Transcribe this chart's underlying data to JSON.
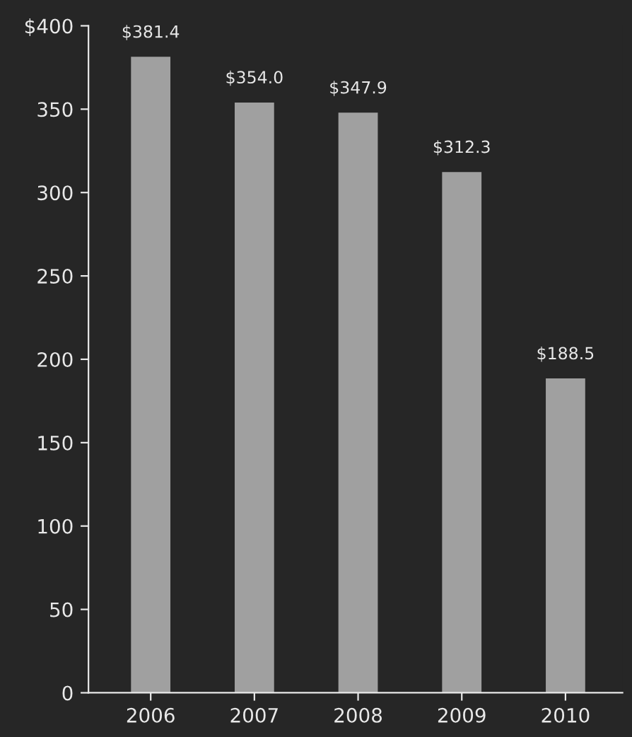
{
  "chart_data": {
    "type": "bar",
    "categories": [
      "2006",
      "2007",
      "2008",
      "2009",
      "2010"
    ],
    "values": [
      381.4,
      354.0,
      347.9,
      312.3,
      188.5
    ],
    "value_labels": [
      "$381.4",
      "$354.0",
      "$347.9",
      "$312.3",
      "$188.5"
    ],
    "color": "#a0a0a0",
    "ylim": [
      0,
      400
    ],
    "yticks": [
      0,
      50,
      100,
      150,
      200,
      250,
      300,
      350,
      {
        "value": 400,
        "label": "$400"
      }
    ],
    "grid": false,
    "legend": false
  }
}
